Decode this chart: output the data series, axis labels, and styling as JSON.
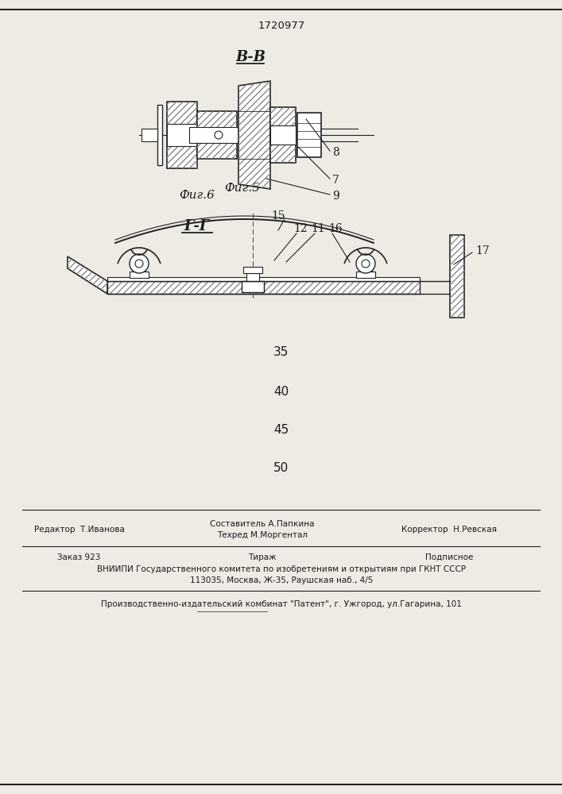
{
  "page_number": "1720977",
  "bg_color": "#eeebe5",
  "fig5_label": "В-В",
  "fig5_caption": "Фиг.5",
  "fig6_label": "Г-Г",
  "fig6_caption": "Фиг.6",
  "numbers_col": [
    "35",
    "40",
    "45",
    "50"
  ],
  "footer_line1_left": "Редактор  Т.Иванова",
  "footer_line1_mid1": "Составитель А.Папкина",
  "footer_line1_mid2": "Техред М.Моргентал",
  "footer_line1_right": "Корректор  Н.Ревская",
  "footer_line2_left": "Заказ 923",
  "footer_line2_mid": "Тираж",
  "footer_line2_right": "Подписное",
  "footer_vniipи": "ВНИИПИ Государственного комитета по изобретениям и открытиям при ГКНТ СССР",
  "footer_address": "113035, Москва, Ж-35, Раушская наб., 4/5",
  "footer_publisher": "Производственно-издательский комбинат \"Патент\", г. Ужгород, ул.Гагарина, 101",
  "text_color": "#1a1a1a",
  "line_color": "#222222"
}
